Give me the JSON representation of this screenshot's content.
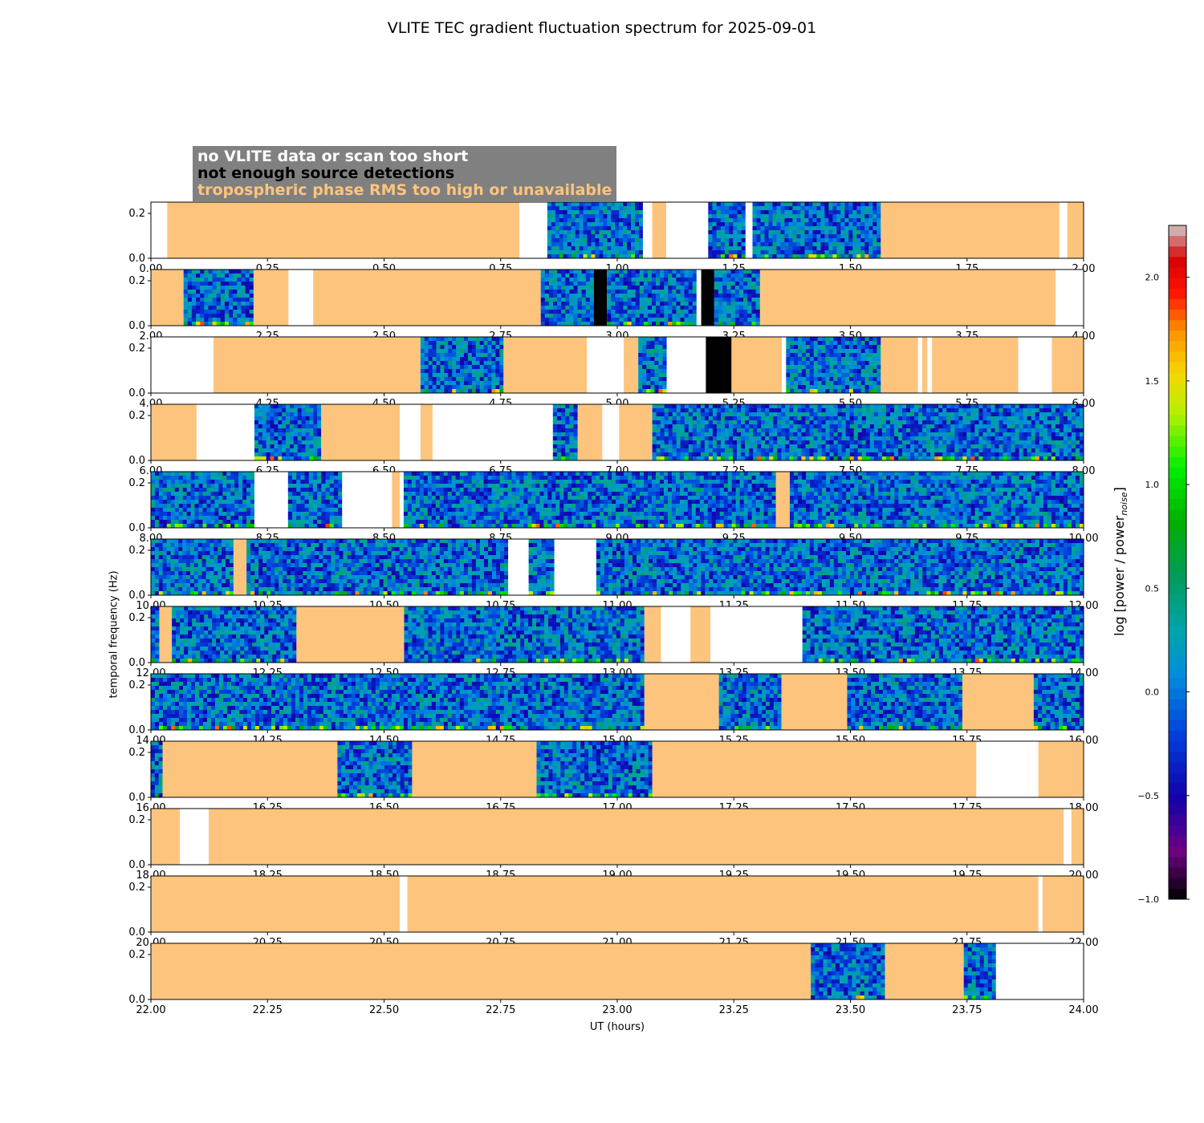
{
  "title": "VLITE TEC gradient fluctuation spectrum for 2025-09-01",
  "legend": {
    "no_data": "no VLITE data or scan too short",
    "no_detections": "not enough source detections",
    "tropo": "tropospheric phase RMS too high or unavailable",
    "colors": {
      "no_data": "#ffffff",
      "no_detections": "#000000",
      "tropo": "#fdc47d",
      "box": "#808080"
    }
  },
  "chart_data": {
    "type": "heatmap",
    "title": "VLITE TEC gradient fluctuation spectrum for 2025-09-01",
    "xlabel": "UT (hours)",
    "ylabel": "temporal frequency (Hz)",
    "ylim": [
      0,
      0.25
    ],
    "yticks": [
      "0.0",
      "0.2"
    ],
    "colorbar": {
      "label_main": "log [power / power",
      "label_sub": "noise",
      "label_end": "]",
      "range": [
        -1.0,
        2.25
      ],
      "ticks": [
        -1.0,
        -0.5,
        0.0,
        0.5,
        1.0,
        1.5,
        2.0
      ],
      "tick_labels": [
        "−1.0",
        "−0.5",
        "0.0",
        "0.5",
        "1.0",
        "1.5",
        "2.0"
      ]
    },
    "panels": [
      {
        "xlim": [
          0,
          2
        ],
        "xticks": [
          "0.00",
          "0.25",
          "0.50",
          "0.75",
          "1.00",
          "1.25",
          "1.50",
          "1.75",
          "2.00"
        ],
        "segments": [
          [
            0,
            0.035,
            "nodata"
          ],
          [
            0.035,
            0.79,
            "tropo"
          ],
          [
            0.79,
            0.85,
            "nodata"
          ],
          [
            0.85,
            1.055,
            "data"
          ],
          [
            1.055,
            1.075,
            "nodata"
          ],
          [
            1.075,
            1.105,
            "tropo"
          ],
          [
            1.105,
            1.195,
            "nodata"
          ],
          [
            1.195,
            1.275,
            "data"
          ],
          [
            1.275,
            1.29,
            "nodata"
          ],
          [
            1.29,
            1.565,
            "data"
          ],
          [
            1.565,
            1.948,
            "tropo"
          ],
          [
            1.948,
            1.965,
            "nodata"
          ],
          [
            1.965,
            2.0,
            "tropo"
          ]
        ]
      },
      {
        "xlim": [
          2,
          4
        ],
        "xticks": [
          "2.00",
          "2.25",
          "2.50",
          "2.75",
          "3.00",
          "3.25",
          "3.50",
          "3.75",
          "4.00"
        ],
        "segments": [
          [
            2.0,
            2.07,
            "tropo"
          ],
          [
            2.07,
            2.22,
            "data"
          ],
          [
            2.22,
            2.295,
            "tropo"
          ],
          [
            2.295,
            2.348,
            "nodata"
          ],
          [
            2.348,
            2.836,
            "tropo"
          ],
          [
            2.836,
            2.95,
            "data"
          ],
          [
            2.95,
            2.978,
            "nodet"
          ],
          [
            2.978,
            3.17,
            "data"
          ],
          [
            3.17,
            3.18,
            "nodata"
          ],
          [
            3.18,
            3.208,
            "nodet"
          ],
          [
            3.208,
            3.306,
            "data"
          ],
          [
            3.306,
            3.94,
            "tropo"
          ],
          [
            3.94,
            4.0,
            "nodata"
          ]
        ]
      },
      {
        "xlim": [
          4,
          6
        ],
        "xticks": [
          "4.00",
          "4.25",
          "4.50",
          "4.75",
          "5.00",
          "5.25",
          "5.50",
          "5.75",
          "6.00"
        ],
        "segments": [
          [
            4.0,
            4.134,
            "nodata"
          ],
          [
            4.134,
            4.578,
            "tropo"
          ],
          [
            4.578,
            4.756,
            "data"
          ],
          [
            4.756,
            4.935,
            "tropo"
          ],
          [
            4.935,
            5.014,
            "nodata"
          ],
          [
            5.014,
            5.045,
            "tropo"
          ],
          [
            5.045,
            5.106,
            "data"
          ],
          [
            5.106,
            5.19,
            "nodata"
          ],
          [
            5.19,
            5.245,
            "nodet"
          ],
          [
            5.245,
            5.353,
            "tropo"
          ],
          [
            5.353,
            5.362,
            "nodata"
          ],
          [
            5.362,
            5.565,
            "data"
          ],
          [
            5.565,
            5.645,
            "tropo"
          ],
          [
            5.645,
            5.654,
            "nodata"
          ],
          [
            5.654,
            5.665,
            "tropo"
          ],
          [
            5.665,
            5.675,
            "nodata"
          ],
          [
            5.675,
            5.86,
            "tropo"
          ],
          [
            5.86,
            5.932,
            "nodata"
          ],
          [
            5.932,
            6.0,
            "tropo"
          ]
        ]
      },
      {
        "xlim": [
          6,
          8
        ],
        "xticks": [
          "6.00",
          "6.25",
          "6.50",
          "6.75",
          "7.00",
          "7.25",
          "7.50",
          "7.75",
          "8.00"
        ],
        "segments": [
          [
            6.0,
            6.098,
            "tropo"
          ],
          [
            6.098,
            6.222,
            "nodata"
          ],
          [
            6.222,
            6.365,
            "data"
          ],
          [
            6.365,
            6.534,
            "tropo"
          ],
          [
            6.534,
            6.578,
            "nodata"
          ],
          [
            6.578,
            6.604,
            "tropo"
          ],
          [
            6.604,
            6.862,
            "nodata"
          ],
          [
            6.862,
            6.915,
            "data"
          ],
          [
            6.915,
            6.968,
            "tropo"
          ],
          [
            6.968,
            7.004,
            "nodata"
          ],
          [
            7.004,
            7.075,
            "tropo"
          ],
          [
            7.075,
            8.0,
            "data"
          ]
        ]
      },
      {
        "xlim": [
          8,
          10
        ],
        "xticks": [
          "8.00",
          "8.25",
          "8.50",
          "8.75",
          "9.00",
          "9.25",
          "9.50",
          "9.75",
          "10.00"
        ],
        "segments": [
          [
            8.0,
            8.222,
            "data"
          ],
          [
            8.222,
            8.294,
            "nodata"
          ],
          [
            8.294,
            8.41,
            "data"
          ],
          [
            8.41,
            8.517,
            "nodata"
          ],
          [
            8.517,
            8.534,
            "tropo"
          ],
          [
            8.534,
            8.542,
            "nodata"
          ],
          [
            8.542,
            9.34,
            "data"
          ],
          [
            9.34,
            9.37,
            "tropo"
          ],
          [
            9.37,
            10.0,
            "data"
          ]
        ]
      },
      {
        "xlim": [
          10,
          12
        ],
        "xticks": [
          "10.00",
          "10.25",
          "10.50",
          "10.75",
          "11.00",
          "11.25",
          "11.50",
          "11.75",
          "12.00"
        ],
        "segments": [
          [
            10.0,
            10.177,
            "data"
          ],
          [
            10.177,
            10.205,
            "tropo"
          ],
          [
            10.205,
            10.766,
            "data"
          ],
          [
            10.766,
            10.81,
            "nodata"
          ],
          [
            10.81,
            10.865,
            "data"
          ],
          [
            10.865,
            10.955,
            "nodata"
          ],
          [
            10.955,
            12.0,
            "data"
          ]
        ]
      },
      {
        "xlim": [
          12,
          14
        ],
        "xticks": [
          "12.00",
          "12.25",
          "12.50",
          "12.75",
          "13.00",
          "13.25",
          "13.50",
          "13.75",
          "14.00"
        ],
        "segments": [
          [
            12.0,
            12.018,
            "data"
          ],
          [
            12.018,
            12.045,
            "tropo"
          ],
          [
            12.045,
            12.312,
            "data"
          ],
          [
            12.312,
            12.543,
            "tropo"
          ],
          [
            12.543,
            13.058,
            "data"
          ],
          [
            13.058,
            13.094,
            "tropo"
          ],
          [
            13.094,
            13.157,
            "nodata"
          ],
          [
            13.157,
            13.2,
            "tropo"
          ],
          [
            13.2,
            13.397,
            "nodata"
          ],
          [
            13.397,
            14.0,
            "data"
          ]
        ]
      },
      {
        "xlim": [
          14,
          16
        ],
        "xticks": [
          "14.00",
          "14.25",
          "14.50",
          "14.75",
          "15.00",
          "15.25",
          "15.50",
          "15.75",
          "16.00"
        ],
        "segments": [
          [
            14.0,
            15.058,
            "data"
          ],
          [
            15.058,
            15.218,
            "tropo"
          ],
          [
            15.218,
            15.352,
            "data"
          ],
          [
            15.352,
            15.493,
            "tropo"
          ],
          [
            15.493,
            15.74,
            "data"
          ],
          [
            15.74,
            15.893,
            "tropo"
          ],
          [
            15.893,
            16.0,
            "data"
          ]
        ]
      },
      {
        "xlim": [
          16,
          18
        ],
        "xticks": [
          "16.00",
          "16.25",
          "16.50",
          "16.75",
          "17.00",
          "17.25",
          "17.50",
          "17.75",
          "18.00"
        ],
        "segments": [
          [
            16.0,
            16.025,
            "data"
          ],
          [
            16.025,
            16.4,
            "tropo"
          ],
          [
            16.4,
            16.56,
            "data"
          ],
          [
            16.56,
            16.827,
            "tropo"
          ],
          [
            16.827,
            17.075,
            "data"
          ],
          [
            17.075,
            17.77,
            "tropo"
          ],
          [
            17.77,
            17.903,
            "nodata"
          ],
          [
            17.903,
            18.0,
            "tropo"
          ]
        ]
      },
      {
        "xlim": [
          18,
          20
        ],
        "xticks": [
          "18.00",
          "18.25",
          "18.50",
          "18.75",
          "19.00",
          "19.25",
          "19.50",
          "19.75",
          "20.00"
        ],
        "segments": [
          [
            18.0,
            18.062,
            "tropo"
          ],
          [
            18.062,
            18.124,
            "nodata"
          ],
          [
            18.124,
            19.957,
            "tropo"
          ],
          [
            19.957,
            19.974,
            "nodata"
          ],
          [
            19.974,
            20.0,
            "tropo"
          ]
        ]
      },
      {
        "xlim": [
          20,
          22
        ],
        "xticks": [
          "20.00",
          "20.25",
          "20.50",
          "20.75",
          "21.00",
          "21.25",
          "21.50",
          "21.75",
          "22.00"
        ],
        "segments": [
          [
            20.0,
            20.534,
            "tropo"
          ],
          [
            20.534,
            20.55,
            "nodata"
          ],
          [
            20.55,
            21.903,
            "tropo"
          ],
          [
            21.903,
            21.912,
            "nodata"
          ],
          [
            21.912,
            22.0,
            "tropo"
          ]
        ]
      },
      {
        "xlim": [
          22,
          24
        ],
        "xticks": [
          "22.00",
          "22.25",
          "22.50",
          "22.75",
          "23.00",
          "23.25",
          "23.50",
          "23.75",
          "24.00"
        ],
        "segments": [
          [
            22.0,
            23.415,
            "tropo"
          ],
          [
            23.415,
            23.574,
            "data"
          ],
          [
            23.574,
            23.743,
            "tropo"
          ],
          [
            23.743,
            23.812,
            "data"
          ],
          [
            23.812,
            24.0,
            "nodata"
          ]
        ]
      }
    ]
  }
}
